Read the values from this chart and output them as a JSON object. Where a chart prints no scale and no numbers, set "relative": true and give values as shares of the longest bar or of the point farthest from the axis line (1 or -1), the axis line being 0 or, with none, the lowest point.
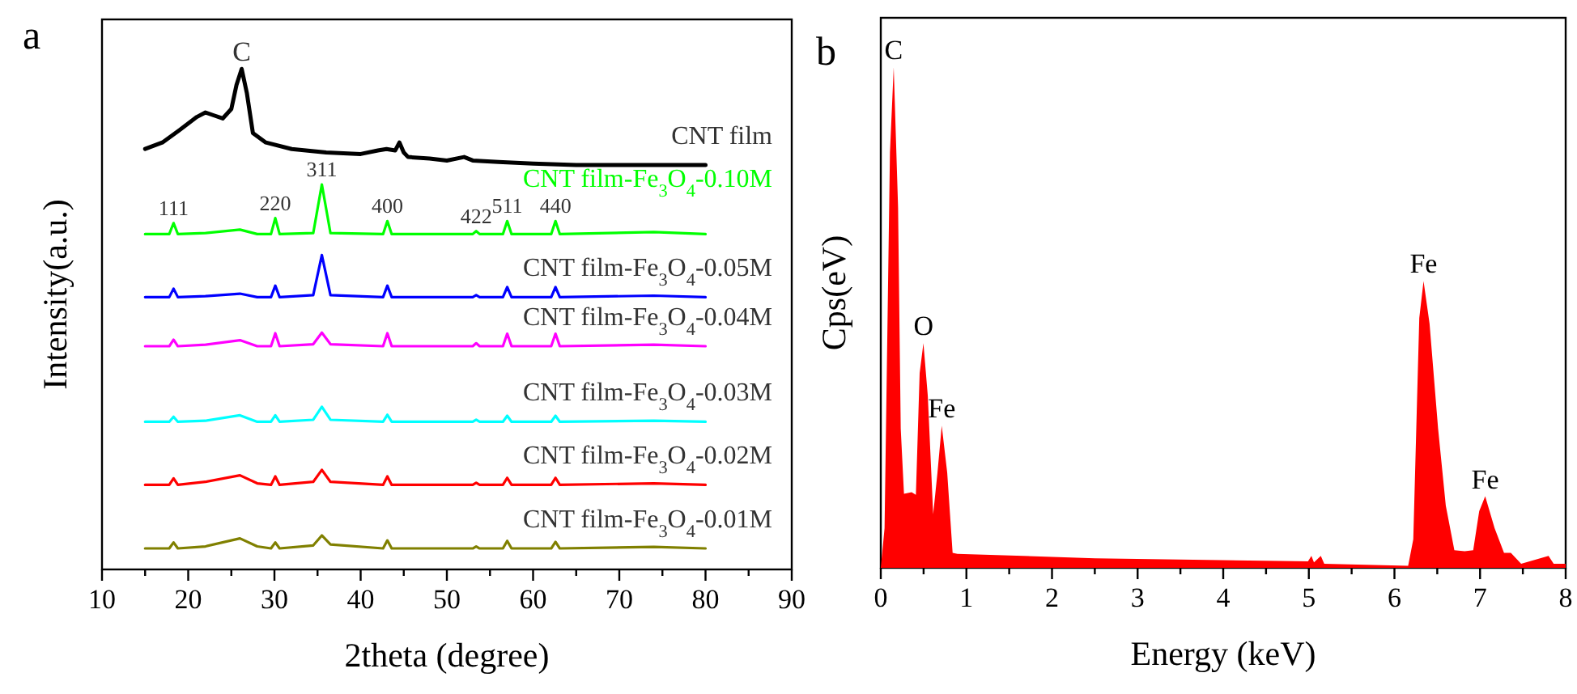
{
  "chart_data": [
    {
      "type": "line",
      "relative": true,
      "xlabel": "2theta (degree)",
      "ylabel": "Intensity(a.u.)",
      "xlim": [
        10,
        90
      ],
      "xticks": [
        10,
        {
          "value": 15,
          "label": null
        },
        20,
        {
          "value": 25,
          "label": null
        },
        30,
        {
          "value": 35,
          "label": null
        },
        40,
        {
          "value": 45,
          "label": null
        },
        50,
        {
          "value": 55,
          "label": null
        },
        60,
        {
          "value": 65,
          "label": null
        },
        70,
        {
          "value": 75,
          "label": null
        },
        80,
        {
          "value": 85,
          "label": null
        },
        90
      ],
      "x": [
        15,
        17.8,
        18.3,
        18.8,
        22,
        26,
        28,
        29.6,
        30.1,
        30.6,
        34.5,
        35.5,
        36.5,
        42.6,
        43.1,
        43.6,
        53,
        53.4,
        53.8,
        56.5,
        57,
        57.5,
        62.1,
        62.6,
        63.1,
        74,
        80
      ],
      "series": [
        {
          "name": "CNT film",
          "color": "#000000",
          "x": [
            15,
            17,
            19,
            21,
            22,
            23,
            24,
            25,
            25.6,
            26.2,
            26.8,
            27.5,
            29,
            32,
            36,
            40,
            42,
            43,
            44,
            44.5,
            45,
            45.5,
            48,
            50,
            52,
            53,
            56,
            60,
            65,
            70,
            75,
            80
          ],
          "values": [
            0.84,
            0.853,
            0.878,
            0.904,
            0.913,
            0.907,
            0.901,
            0.92,
            0.968,
            1.0,
            0.952,
            0.872,
            0.853,
            0.84,
            0.833,
            0.83,
            0.837,
            0.84,
            0.837,
            0.853,
            0.833,
            0.824,
            0.821,
            0.817,
            0.824,
            0.817,
            0.814,
            0.811,
            0.808,
            0.808,
            0.808,
            0.808
          ]
        },
        {
          "name": "CNT film-Fe$_{3}$O$_{4}$-0.10M",
          "color": "#00ff00",
          "values": [
            0.67,
            0.67,
            0.692,
            0.67,
            0.672,
            0.679,
            0.67,
            0.67,
            0.702,
            0.67,
            0.672,
            0.769,
            0.672,
            0.67,
            0.696,
            0.67,
            0.67,
            0.676,
            0.67,
            0.67,
            0.696,
            0.67,
            0.67,
            0.696,
            0.67,
            0.674,
            0.67
          ]
        },
        {
          "name": "CNT film-Fe$_{3}$O$_{4}$-0.05M",
          "color": "#0000ff",
          "values": [
            0.544,
            0.544,
            0.561,
            0.544,
            0.546,
            0.551,
            0.544,
            0.544,
            0.567,
            0.544,
            0.548,
            0.628,
            0.548,
            0.544,
            0.567,
            0.544,
            0.544,
            0.548,
            0.544,
            0.544,
            0.564,
            0.544,
            0.544,
            0.564,
            0.544,
            0.547,
            0.544
          ]
        },
        {
          "name": "CNT film-Fe$_{3}$O$_{4}$-0.04M",
          "color": "#ff00ff",
          "values": [
            0.446,
            0.446,
            0.459,
            0.446,
            0.449,
            0.458,
            0.446,
            0.446,
            0.472,
            0.446,
            0.45,
            0.473,
            0.45,
            0.446,
            0.472,
            0.446,
            0.446,
            0.452,
            0.446,
            0.446,
            0.471,
            0.446,
            0.446,
            0.471,
            0.446,
            0.449,
            0.446
          ]
        },
        {
          "name": "CNT film-Fe$_{3}$O$_{4}$-0.03M",
          "color": "#00ffff",
          "values": [
            0.295,
            0.295,
            0.305,
            0.295,
            0.297,
            0.308,
            0.295,
            0.295,
            0.308,
            0.295,
            0.299,
            0.325,
            0.299,
            0.295,
            0.309,
            0.295,
            0.295,
            0.299,
            0.295,
            0.295,
            0.307,
            0.295,
            0.295,
            0.307,
            0.295,
            0.297,
            0.295
          ]
        },
        {
          "name": "CNT film-Fe$_{3}$O$_{4}$-0.02M",
          "color": "#ff0000",
          "values": [
            0.169,
            0.169,
            0.182,
            0.169,
            0.175,
            0.188,
            0.172,
            0.169,
            0.186,
            0.169,
            0.175,
            0.199,
            0.175,
            0.169,
            0.186,
            0.169,
            0.169,
            0.173,
            0.169,
            0.169,
            0.183,
            0.169,
            0.169,
            0.183,
            0.169,
            0.172,
            0.169
          ]
        },
        {
          "name": "CNT film-Fe$_{3}$O$_{4}$-0.01M",
          "color": "#808000",
          "values": [
            0.042,
            0.042,
            0.054,
            0.042,
            0.046,
            0.062,
            0.046,
            0.042,
            0.054,
            0.042,
            0.048,
            0.068,
            0.05,
            0.042,
            0.058,
            0.042,
            0.042,
            0.046,
            0.042,
            0.042,
            0.057,
            0.042,
            0.042,
            0.055,
            0.042,
            0.045,
            0.042
          ]
        }
      ],
      "annotations": [
        "a",
        {
          "text": "C",
          "x": 26.2,
          "y": 1.0
        },
        {
          "text": "111",
          "x": 18.3,
          "y": 0.692
        },
        {
          "text": "220",
          "x": 30.1,
          "y": 0.702
        },
        {
          "text": "311",
          "x": 35.5,
          "y": 0.769
        },
        {
          "text": "400",
          "x": 43.1,
          "y": 0.696
        },
        {
          "text": "422",
          "x": 53.4,
          "y": 0.676
        },
        {
          "text": "511",
          "x": 57,
          "y": 0.696
        },
        {
          "text": "440",
          "x": 62.6,
          "y": 0.696
        }
      ]
    },
    {
      "type": "area",
      "relative": true,
      "xlabel": "Energy (keV)",
      "ylabel": "Cps(eV)",
      "xlim": [
        0,
        8
      ],
      "xticks": [
        0,
        {
          "value": 0.5,
          "label": null
        },
        1,
        {
          "value": 1.5,
          "label": null
        },
        2,
        {
          "value": 2.5,
          "label": null
        },
        3,
        {
          "value": 3.5,
          "label": null
        },
        4,
        {
          "value": 4.5,
          "label": null
        },
        5,
        {
          "value": 5.5,
          "label": null
        },
        6,
        {
          "value": 6.5,
          "label": null
        },
        7,
        {
          "value": 7.5,
          "label": null
        },
        8
      ],
      "x": [
        0,
        0.044,
        0.107,
        0.151,
        0.202,
        0.233,
        0.271,
        0.36,
        0.41,
        0.454,
        0.498,
        0.549,
        0.612,
        0.662,
        0.712,
        0.776,
        0.839,
        0.895,
        2.5,
        4.99,
        5.03,
        5.06,
        5.14,
        5.18,
        6.16,
        6.22,
        6.29,
        6.34,
        6.41,
        6.51,
        6.6,
        6.7,
        6.82,
        6.92,
        6.99,
        7.06,
        7.17,
        7.28,
        7.36,
        7.48,
        7.8,
        7.86,
        8
      ],
      "series": [
        {
          "color": "#ff0000",
          "values": [
            0,
            0.079,
            0.83,
            1.0,
            0.72,
            0.278,
            0.148,
            0.151,
            0.146,
            0.389,
            0.449,
            0.344,
            0.107,
            0.19,
            0.284,
            0.19,
            0.03,
            0.028,
            0.019,
            0.013,
            0.024,
            0.011,
            0.024,
            0.008,
            0.004,
            0.057,
            0.499,
            0.573,
            0.488,
            0.278,
            0.124,
            0.035,
            0.033,
            0.035,
            0.113,
            0.143,
            0.079,
            0.03,
            0.03,
            0.008,
            0.024,
            0.008,
            0.008
          ]
        }
      ],
      "annotations": [
        "b",
        {
          "text": "C",
          "x": 0.151,
          "y": 1.0
        },
        {
          "text": "O",
          "x": 0.498,
          "y": 0.449
        },
        {
          "text": "Fe",
          "x": 0.712,
          "y": 0.284
        },
        {
          "text": "Fe",
          "x": 6.34,
          "y": 0.573
        },
        {
          "text": "Fe",
          "x": 7.06,
          "y": 0.143
        }
      ]
    }
  ]
}
